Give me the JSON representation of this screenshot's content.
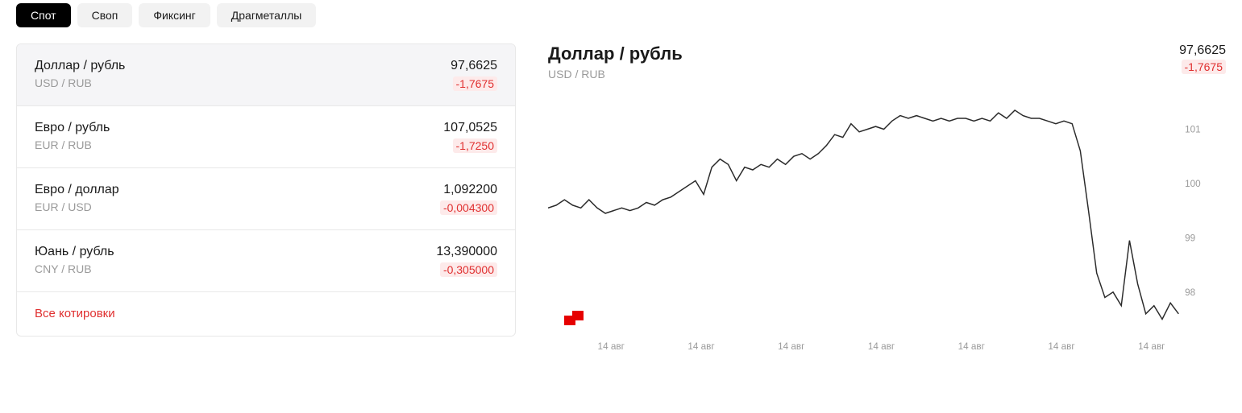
{
  "tabs": [
    {
      "label": "Спот",
      "active": true
    },
    {
      "label": "Своп",
      "active": false
    },
    {
      "label": "Фиксинг",
      "active": false
    },
    {
      "label": "Драгметаллы",
      "active": false
    }
  ],
  "quotes": [
    {
      "title": "Доллар / рубль",
      "code": "USD / RUB",
      "value": "97,6625",
      "change": "-1,7675",
      "change_dir": "neg",
      "selected": true
    },
    {
      "title": "Евро / рубль",
      "code": "EUR / RUB",
      "value": "107,0525",
      "change": "-1,7250",
      "change_dir": "neg",
      "selected": false
    },
    {
      "title": "Евро / доллар",
      "code": "EUR / USD",
      "value": "1,092200",
      "change": "-0,004300",
      "change_dir": "neg",
      "selected": false
    },
    {
      "title": "Юань / рубль",
      "code": "CNY / RUB",
      "value": "13,390000",
      "change": "-0,305000",
      "change_dir": "neg",
      "selected": false
    }
  ],
  "all_quotes_link": "Все котировки",
  "chart": {
    "type": "line",
    "title": "Доллар / рубль",
    "code": "USD / RUB",
    "value": "97,6625",
    "change": "-1,7675",
    "change_dir": "neg",
    "line_color": "#2a2a2a",
    "line_width": 1.5,
    "background_color": "#ffffff",
    "axis_text_color": "#9a9a9a",
    "legend_marker_color": "#e60000",
    "y_ticks": [
      98,
      99,
      100,
      101
    ],
    "ylim": [
      97.3,
      101.6
    ],
    "x_tick_label": "14 авг",
    "x_tick_count": 7,
    "series": [
      99.55,
      99.6,
      99.7,
      99.6,
      99.55,
      99.7,
      99.55,
      99.45,
      99.5,
      99.55,
      99.5,
      99.55,
      99.65,
      99.6,
      99.7,
      99.75,
      99.85,
      99.95,
      100.05,
      99.8,
      100.3,
      100.45,
      100.35,
      100.05,
      100.3,
      100.25,
      100.35,
      100.3,
      100.45,
      100.35,
      100.5,
      100.55,
      100.45,
      100.55,
      100.7,
      100.9,
      100.85,
      101.1,
      100.95,
      101.0,
      101.05,
      101.0,
      101.15,
      101.25,
      101.2,
      101.25,
      101.2,
      101.15,
      101.2,
      101.15,
      101.2,
      101.2,
      101.15,
      101.2,
      101.15,
      101.3,
      101.2,
      101.35,
      101.25,
      101.2,
      101.2,
      101.15,
      101.1,
      101.15,
      101.1,
      100.6,
      99.5,
      98.35,
      97.9,
      98.0,
      97.75,
      98.95,
      98.15,
      97.6,
      97.75,
      97.5,
      97.8,
      97.6
    ]
  },
  "colors": {
    "tab_active_bg": "#000000",
    "tab_active_fg": "#ffffff",
    "tab_inactive_bg": "#f2f2f2",
    "tab_inactive_fg": "#1a1a1a",
    "negative_fg": "#e03030",
    "negative_bg": "#fdeaea",
    "muted_text": "#9a9a9a",
    "border": "#e8e8e8",
    "link": "#e03030"
  }
}
